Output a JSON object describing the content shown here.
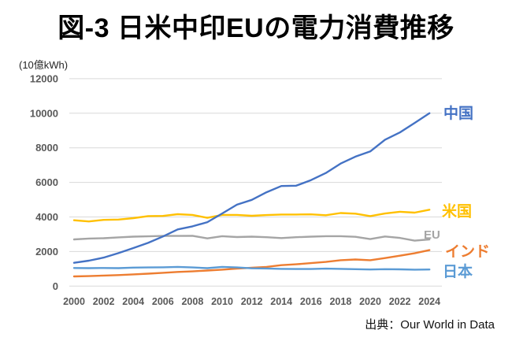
{
  "title": "図-3 日米中印EUの電力消費推移",
  "y_axis_unit": "(10億kWh)",
  "source": "出典：Our World in Data",
  "colors": {
    "grid": "#d9d9d9",
    "axis_text": "#595959",
    "title_text": "#000000",
    "china_blue": "#4472C4",
    "us_yellow": "#FFC000",
    "eu_gray": "#A5A5A5",
    "india_orange": "#ED7D31",
    "japan_lightblue": "#5B9BD5"
  },
  "chart_data": {
    "type": "line",
    "title": "図-3 日米中印EUの電力消費推移",
    "xlabel": "",
    "ylabel": "(10億kWh)",
    "xlim": [
      2000,
      2024
    ],
    "ylim": [
      0,
      12000
    ],
    "grid": "horizontal",
    "legend_position": "line-end-labels-right",
    "x": [
      2000,
      2001,
      2002,
      2003,
      2004,
      2005,
      2006,
      2007,
      2008,
      2009,
      2010,
      2011,
      2012,
      2013,
      2014,
      2015,
      2016,
      2017,
      2018,
      2019,
      2020,
      2021,
      2022,
      2023,
      2024
    ],
    "x_ticks": [
      2000,
      2002,
      2004,
      2006,
      2008,
      2010,
      2012,
      2014,
      2016,
      2018,
      2020,
      2022,
      2024
    ],
    "y_ticks": [
      0,
      2000,
      4000,
      6000,
      8000,
      10000,
      12000
    ],
    "series": [
      {
        "id": "us",
        "name": "米国",
        "color": "#FFC000",
        "values": [
          3810,
          3740,
          3830,
          3850,
          3930,
          4050,
          4060,
          4160,
          4120,
          3950,
          4120,
          4120,
          4070,
          4110,
          4140,
          4140,
          4150,
          4100,
          4230,
          4190,
          4050,
          4200,
          4300,
          4250,
          4420
        ],
        "label_dx": -2,
        "label_dy": 2,
        "label_size": 19
      },
      {
        "id": "eu",
        "name": "EU",
        "color": "#A5A5A5",
        "values": [
          2700,
          2750,
          2770,
          2820,
          2860,
          2880,
          2900,
          2900,
          2910,
          2760,
          2890,
          2840,
          2860,
          2830,
          2780,
          2830,
          2860,
          2890,
          2890,
          2850,
          2720,
          2870,
          2790,
          2630,
          2700
        ],
        "label_dx": -25,
        "label_dy": -7,
        "label_size": 15
      },
      {
        "id": "india",
        "name": "インド",
        "color": "#ED7D31",
        "values": [
          560,
          580,
          610,
          640,
          680,
          720,
          770,
          820,
          850,
          900,
          950,
          1010,
          1060,
          1110,
          1210,
          1260,
          1330,
          1400,
          1500,
          1540,
          1500,
          1620,
          1760,
          1900,
          2080
        ],
        "label_dx": 2,
        "label_dy": 2,
        "label_size": 19
      },
      {
        "id": "japan",
        "name": "日本",
        "color": "#5B9BD5",
        "values": [
          1050,
          1040,
          1050,
          1040,
          1070,
          1080,
          1090,
          1110,
          1080,
          1040,
          1110,
          1080,
          1030,
          1020,
          1000,
          990,
          990,
          1010,
          1000,
          980,
          960,
          980,
          970,
          950,
          960
        ],
        "label_dx": -1,
        "label_dy": 3,
        "label_size": 19
      },
      {
        "id": "china",
        "name": "中国",
        "color": "#4472C4",
        "values": [
          1347,
          1470,
          1650,
          1910,
          2200,
          2500,
          2870,
          3280,
          3460,
          3700,
          4200,
          4710,
          4990,
          5430,
          5790,
          5810,
          6130,
          6540,
          7090,
          7490,
          7790,
          8470,
          8890,
          9440,
          10000
        ],
        "label_dx": 0,
        "label_dy": 0,
        "label_size": 19
      }
    ]
  }
}
